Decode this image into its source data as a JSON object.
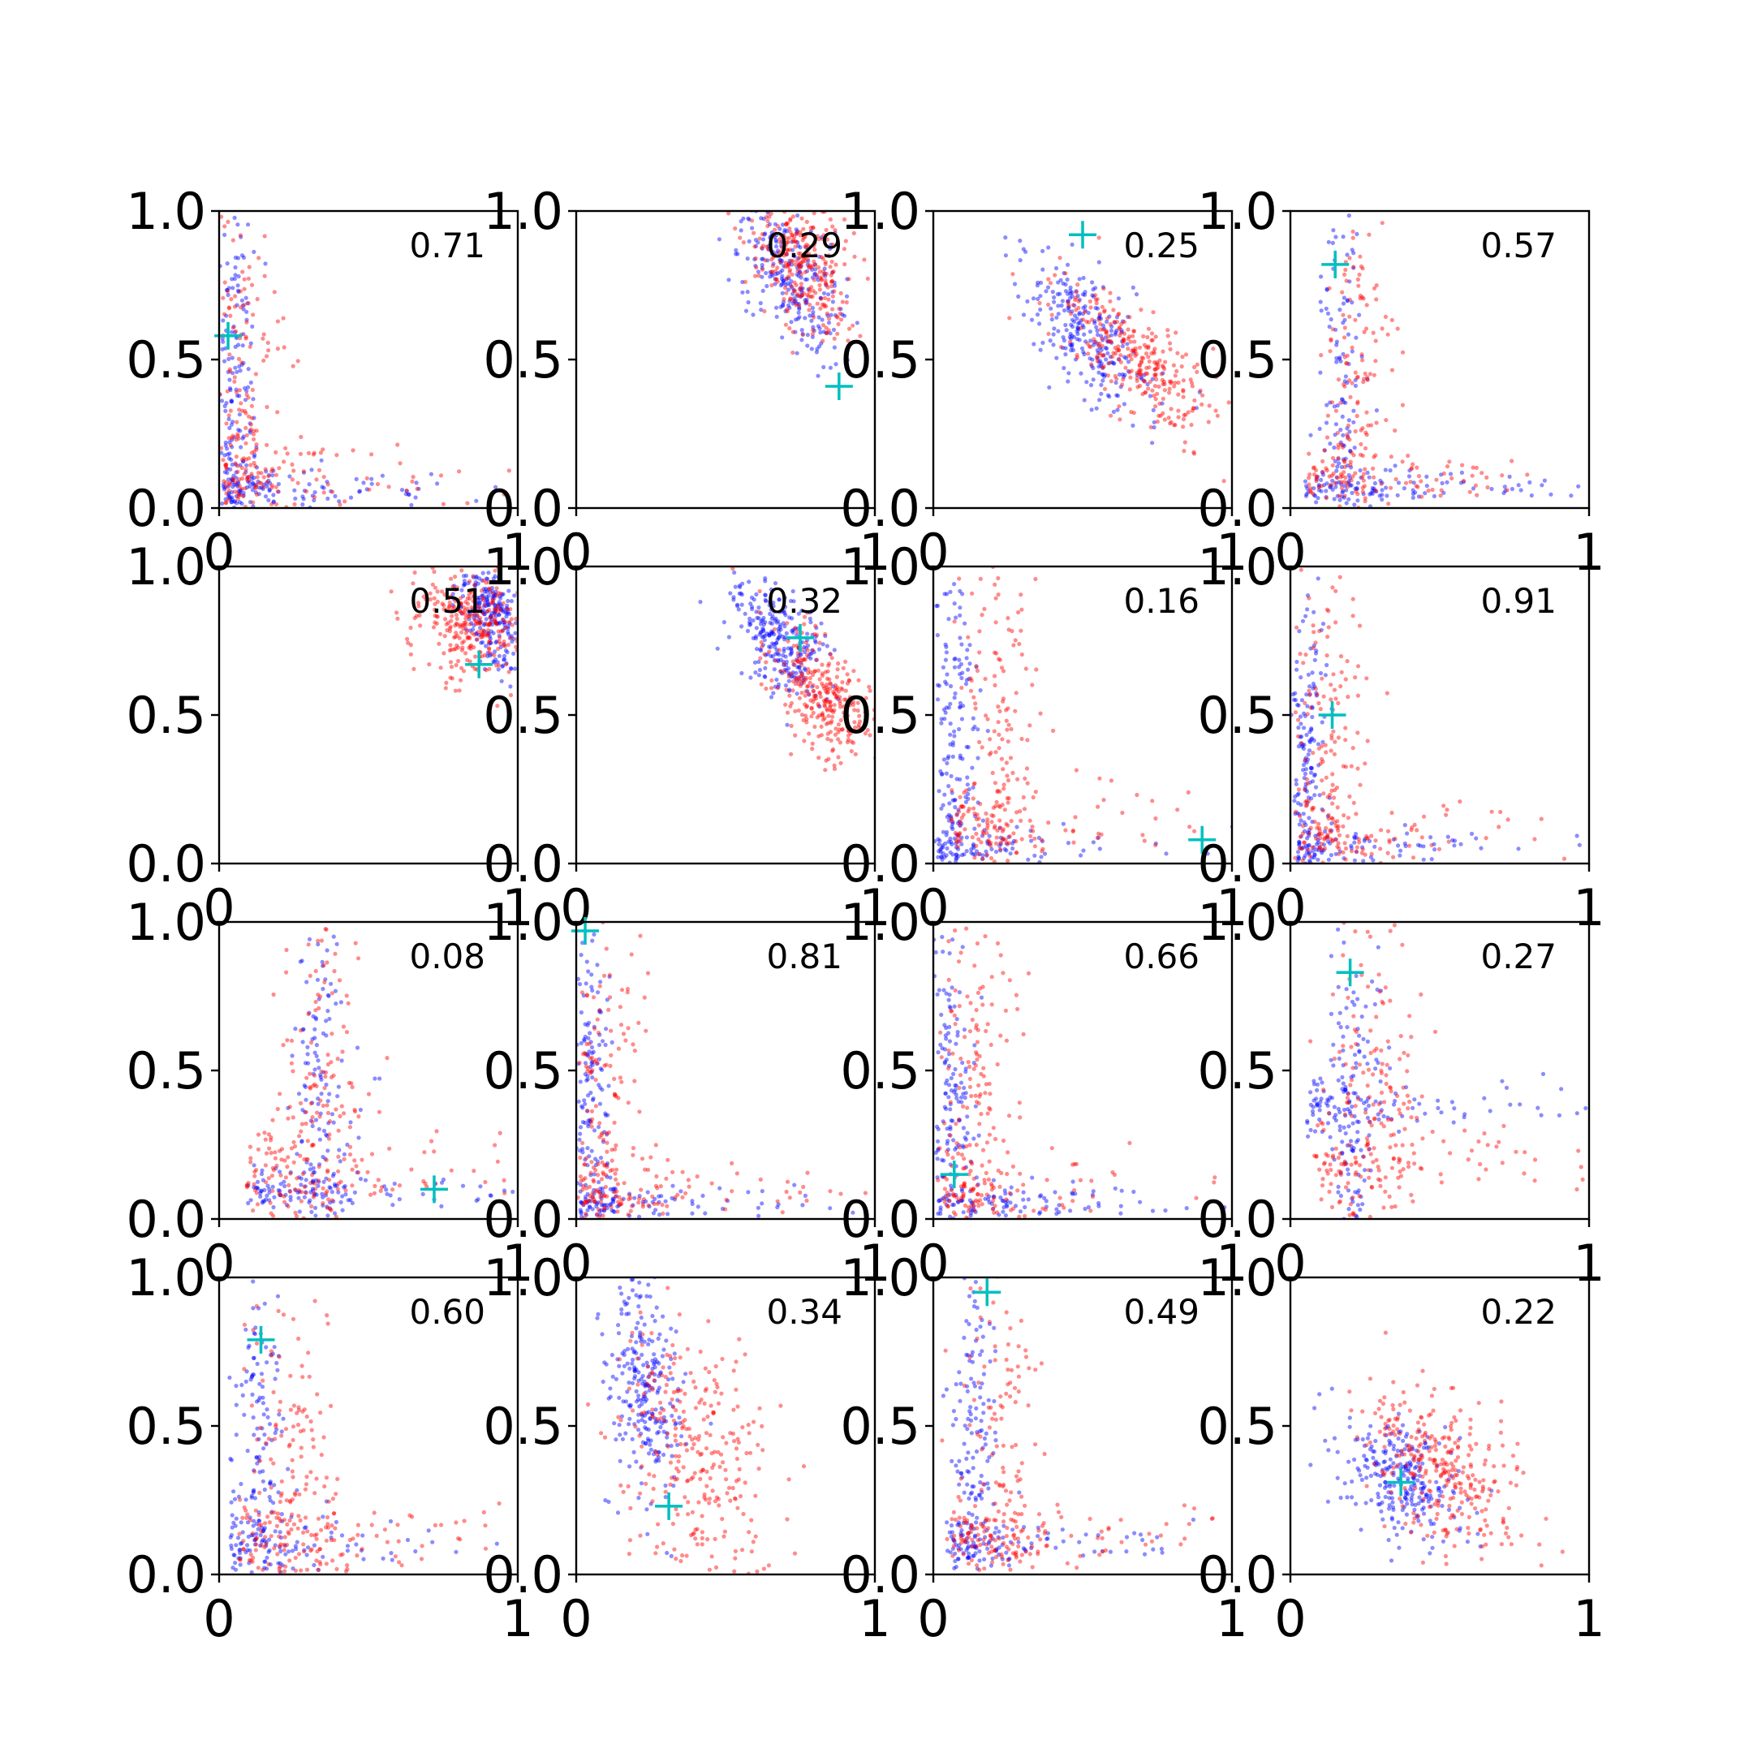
{
  "colors": {
    "series_blue": "#0000ff",
    "series_red": "#ff0000",
    "marker": "#00bfbf",
    "axes": "#000000"
  },
  "chart_data": {
    "type": "scatter",
    "grid": false,
    "legend": "none",
    "rows": 4,
    "cols": 4,
    "xlim": [
      0,
      1
    ],
    "ylim": [
      0,
      1
    ],
    "x_ticks": [
      "0",
      "1"
    ],
    "y_ticks": [
      "0.0",
      "0.5",
      "1.0"
    ],
    "panels": [
      {
        "annotation": "0.71",
        "marker": {
          "x": 0.03,
          "y": 0.58
        },
        "blue": {
          "shape": "L",
          "cx": 0.05,
          "cy": 0.05,
          "kx": 0.03,
          "ky": 0.03,
          "spread": 0.06,
          "n": 260
        },
        "red": {
          "shape": "L",
          "cx": 0.07,
          "cy": 0.07,
          "kx": 0.08,
          "ky": 0.08,
          "spread": 0.12,
          "n": 230
        }
      },
      {
        "annotation": "0.29",
        "marker": {
          "x": 0.88,
          "y": 0.41
        },
        "blue": {
          "shape": "blob",
          "cx": 0.72,
          "cy": 0.78,
          "sx": 0.09,
          "sy": 0.14,
          "rho": -0.55,
          "n": 260
        },
        "red": {
          "shape": "blob",
          "cx": 0.76,
          "cy": 0.82,
          "sx": 0.09,
          "sy": 0.12,
          "rho": -0.35,
          "n": 300
        }
      },
      {
        "annotation": "0.25",
        "marker": {
          "x": 0.5,
          "y": 0.92
        },
        "blue": {
          "shape": "blob",
          "cx": 0.5,
          "cy": 0.6,
          "sx": 0.1,
          "sy": 0.12,
          "rho": -0.55,
          "n": 260
        },
        "red": {
          "shape": "blob",
          "cx": 0.68,
          "cy": 0.5,
          "sx": 0.14,
          "sy": 0.13,
          "rho": -0.75,
          "n": 300
        }
      },
      {
        "annotation": "0.57",
        "marker": {
          "x": 0.15,
          "y": 0.82
        },
        "blue": {
          "shape": "L",
          "cx": 0.16,
          "cy": 0.05,
          "kx": 0.05,
          "ky": 0.04,
          "spread": 0.05,
          "n": 220
        },
        "red": {
          "shape": "L",
          "cx": 0.2,
          "cy": 0.08,
          "kx": 0.07,
          "ky": 0.05,
          "spread": 0.08,
          "n": 220
        }
      },
      {
        "annotation": "0.51",
        "marker": {
          "x": 0.87,
          "y": 0.67
        },
        "blue": {
          "shape": "blob",
          "cx": 0.91,
          "cy": 0.84,
          "sx": 0.05,
          "sy": 0.09,
          "rho": -0.3,
          "n": 240
        },
        "red": {
          "shape": "blob",
          "cx": 0.85,
          "cy": 0.8,
          "sx": 0.09,
          "sy": 0.09,
          "rho": -0.2,
          "n": 300
        }
      },
      {
        "annotation": "0.32",
        "marker": {
          "x": 0.75,
          "y": 0.76
        },
        "blue": {
          "shape": "blob",
          "cx": 0.68,
          "cy": 0.75,
          "sx": 0.08,
          "sy": 0.1,
          "rho": -0.5,
          "n": 260
        },
        "red": {
          "shape": "blob",
          "cx": 0.82,
          "cy": 0.58,
          "sx": 0.09,
          "sy": 0.11,
          "rho": -0.55,
          "n": 300
        }
      },
      {
        "annotation": "0.16",
        "marker": {
          "x": 0.9,
          "y": 0.08
        },
        "blue": {
          "shape": "L",
          "cx": 0.05,
          "cy": 0.05,
          "kx": 0.08,
          "ky": 0.04,
          "spread": 0.06,
          "n": 240
        },
        "red": {
          "shape": "L",
          "cx": 0.2,
          "cy": 0.1,
          "kx": 0.07,
          "ky": 0.1,
          "spread": 0.1,
          "n": 240
        }
      },
      {
        "annotation": "0.91",
        "marker": {
          "x": 0.14,
          "y": 0.5
        },
        "blue": {
          "shape": "L",
          "cx": 0.05,
          "cy": 0.04,
          "kx": 0.04,
          "ky": 0.04,
          "spread": 0.05,
          "n": 230
        },
        "red": {
          "shape": "L",
          "cx": 0.1,
          "cy": 0.07,
          "kx": 0.08,
          "ky": 0.07,
          "spread": 0.1,
          "n": 230
        }
      },
      {
        "annotation": "0.08",
        "marker": {
          "x": 0.72,
          "y": 0.1
        },
        "blue": {
          "shape": "L",
          "cx": 0.3,
          "cy": 0.08,
          "kx": 0.15,
          "ky": 0.05,
          "spread": 0.05,
          "n": 240
        },
        "red": {
          "shape": "L",
          "cx": 0.3,
          "cy": 0.12,
          "kx": 0.14,
          "ky": 0.12,
          "spread": 0.12,
          "n": 240
        }
      },
      {
        "annotation": "0.81",
        "marker": {
          "x": 0.03,
          "y": 0.97
        },
        "blue": {
          "shape": "L",
          "cx": 0.04,
          "cy": 0.04,
          "kx": 0.04,
          "ky": 0.04,
          "spread": 0.05,
          "n": 230
        },
        "red": {
          "shape": "L",
          "cx": 0.07,
          "cy": 0.07,
          "kx": 0.08,
          "ky": 0.07,
          "spread": 0.12,
          "n": 230
        }
      },
      {
        "annotation": "0.66",
        "marker": {
          "x": 0.07,
          "y": 0.15
        },
        "blue": {
          "shape": "L",
          "cx": 0.05,
          "cy": 0.04,
          "kx": 0.05,
          "ky": 0.04,
          "spread": 0.05,
          "n": 230
        },
        "red": {
          "shape": "L",
          "cx": 0.12,
          "cy": 0.07,
          "kx": 0.07,
          "ky": 0.07,
          "spread": 0.12,
          "n": 230
        }
      },
      {
        "annotation": "0.27",
        "marker": {
          "x": 0.2,
          "y": 0.83
        },
        "blue": {
          "shape": "L",
          "cx": 0.18,
          "cy": 0.35,
          "kx": 0.06,
          "ky": 0.1,
          "spread": 0.06,
          "n": 220
        },
        "red": {
          "shape": "L",
          "cx": 0.25,
          "cy": 0.15,
          "kx": 0.1,
          "ky": 0.1,
          "spread": 0.12,
          "n": 240
        }
      },
      {
        "annotation": "0.60",
        "marker": {
          "x": 0.14,
          "y": 0.79
        },
        "blue": {
          "shape": "L",
          "cx": 0.12,
          "cy": 0.08,
          "kx": 0.06,
          "ky": 0.08,
          "spread": 0.08,
          "n": 230
        },
        "red": {
          "shape": "L",
          "cx": 0.22,
          "cy": 0.1,
          "kx": 0.08,
          "ky": 0.1,
          "spread": 0.12,
          "n": 240
        }
      },
      {
        "annotation": "0.34",
        "marker": {
          "x": 0.31,
          "y": 0.23
        },
        "blue": {
          "shape": "blob",
          "cx": 0.22,
          "cy": 0.65,
          "sx": 0.06,
          "sy": 0.2,
          "rho": -0.3,
          "n": 260
        },
        "red": {
          "shape": "blob",
          "cx": 0.38,
          "cy": 0.45,
          "sx": 0.12,
          "sy": 0.22,
          "rho": -0.25,
          "n": 280
        }
      },
      {
        "annotation": "0.49",
        "marker": {
          "x": 0.18,
          "y": 0.95
        },
        "blue": {
          "shape": "L",
          "cx": 0.12,
          "cy": 0.08,
          "kx": 0.06,
          "ky": 0.06,
          "spread": 0.06,
          "n": 240
        },
        "red": {
          "shape": "L",
          "cx": 0.2,
          "cy": 0.1,
          "kx": 0.06,
          "ky": 0.08,
          "spread": 0.1,
          "n": 240
        }
      },
      {
        "annotation": "0.22",
        "marker": {
          "x": 0.37,
          "y": 0.31
        },
        "blue": {
          "shape": "blob",
          "cx": 0.38,
          "cy": 0.32,
          "sx": 0.1,
          "sy": 0.1,
          "rho": -0.35,
          "n": 260
        },
        "red": {
          "shape": "blob",
          "cx": 0.52,
          "cy": 0.35,
          "sx": 0.13,
          "sy": 0.14,
          "rho": -0.45,
          "n": 300
        }
      }
    ]
  }
}
